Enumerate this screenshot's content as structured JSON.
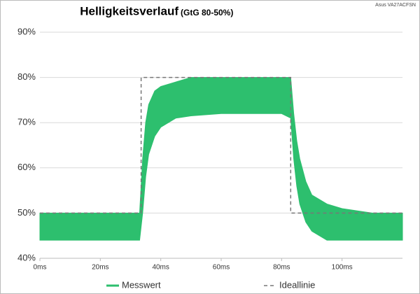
{
  "chart_data": {
    "type": "band",
    "title": "Helligkeitsverlauf",
    "subtitle": "(GtG 80-50%)",
    "corner_note": "Asus VA27ACFSN",
    "xlim": [
      0,
      120
    ],
    "xticks": [
      {
        "value": 0,
        "label": "0ms"
      },
      {
        "value": 20,
        "label": "20ms"
      },
      {
        "value": 40,
        "label": "40ms"
      },
      {
        "value": 60,
        "label": "60ms"
      },
      {
        "value": 80,
        "label": "80ms"
      },
      {
        "value": 100,
        "label": "100ms"
      }
    ],
    "ylim": [
      40,
      90
    ],
    "yticks": [
      {
        "value": 40,
        "label": "40%"
      },
      {
        "value": 50,
        "label": "50%"
      },
      {
        "value": 60,
        "label": "60%"
      },
      {
        "value": 70,
        "label": "70%"
      },
      {
        "value": 80,
        "label": "80%"
      },
      {
        "value": 90,
        "label": "90%"
      }
    ],
    "grid": true,
    "series": [
      {
        "name": "Messwert",
        "color": "#2dbf6e",
        "x": [
          0,
          10,
          20,
          30,
          33,
          34,
          35,
          36,
          38,
          40,
          45,
          50,
          60,
          70,
          80,
          83,
          84,
          85,
          86,
          88,
          90,
          95,
          100,
          110,
          120
        ],
        "high": [
          50,
          50,
          50,
          50,
          50,
          62,
          70,
          74,
          77,
          78,
          79,
          80,
          80,
          80,
          80,
          80,
          72,
          66,
          62,
          57,
          54,
          52,
          51,
          50,
          50
        ],
        "low": [
          44,
          44,
          44,
          44,
          44,
          50,
          58,
          63,
          67,
          69,
          71,
          71.5,
          72,
          72,
          72,
          71,
          62,
          56,
          52,
          48,
          46,
          44,
          44,
          44,
          44
        ]
      },
      {
        "name": "Ideallinie",
        "color": "#777777",
        "dashed": true,
        "x": [
          0,
          33.5,
          33.5,
          83,
          83,
          120
        ],
        "values": [
          50,
          50,
          80,
          80,
          50,
          50
        ]
      }
    ]
  }
}
